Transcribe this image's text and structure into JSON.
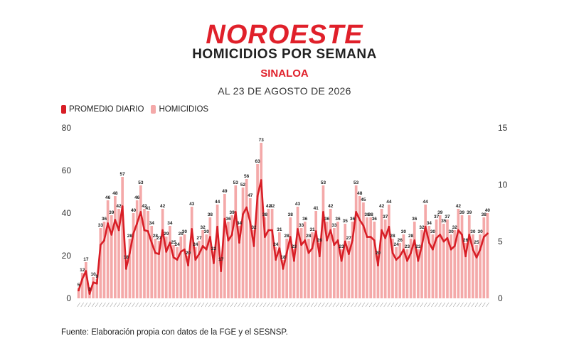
{
  "header": {
    "brand": "NOROESTE",
    "title": "HOMICIDIOS POR SEMANA",
    "subtitle": "SINALOA",
    "date": "AL 23 DE AGOSTO DE 2026"
  },
  "legend": {
    "line_label": "PROMEDIO DIARIO",
    "bar_label": "HOMICIDIOS"
  },
  "footnote": "Fuente: Elaboración propia con datos de la FGE y el SESNSP.",
  "colors": {
    "brand": "#e0202a",
    "bars": "#f4a9a9",
    "line": "#d81e26",
    "subtitle": "#e0202a"
  },
  "chart_data": {
    "type": "bar",
    "title": "HOMICIDIOS POR SEMANA",
    "subtitle": "SINALOA",
    "left_axis": {
      "ylim": [
        0,
        80
      ],
      "ticks": [
        0,
        20,
        40,
        60,
        80
      ]
    },
    "right_axis": {
      "ylim": [
        0,
        15
      ],
      "ticks": [
        0,
        5,
        10,
        15
      ]
    },
    "grid": false,
    "legend_position": "top-left",
    "series": [
      {
        "name": "HOMICIDIOS",
        "kind": "bar",
        "axis": "left",
        "values": [
          5,
          12,
          17,
          3,
          10,
          9,
          33,
          36,
          46,
          39,
          48,
          42,
          57,
          18,
          28,
          40,
          46,
          53,
          42,
          41,
          34,
          28,
          27,
          42,
          29,
          34,
          25,
          24,
          29,
          30,
          20,
          43,
          24,
          27,
          32,
          30,
          38,
          22,
          44,
          17,
          49,
          36,
          39,
          53,
          34,
          52,
          56,
          47,
          32,
          63,
          73,
          38,
          42,
          42,
          24,
          31,
          18,
          28,
          38,
          23,
          43,
          33,
          36,
          28,
          31,
          41,
          26,
          53,
          36,
          42,
          33,
          36,
          23,
          35,
          27,
          36,
          53,
          48,
          45,
          38,
          38,
          36,
          20,
          42,
          37,
          44,
          28,
          24,
          26,
          30,
          23,
          28,
          36,
          23,
          32,
          44,
          34,
          30,
          37,
          39,
          35,
          37,
          30,
          32,
          42,
          39,
          26,
          39,
          30,
          25,
          30,
          38,
          40
        ]
      },
      {
        "name": "PROMEDIO DIARIO",
        "kind": "line",
        "axis": "right",
        "values": [
          0.7,
          1.7,
          2.4,
          0.4,
          1.4,
          1.3,
          4.7,
          5.1,
          6.6,
          5.6,
          6.9,
          6.0,
          8.1,
          2.6,
          4.0,
          5.7,
          6.6,
          7.6,
          6.0,
          5.9,
          4.9,
          4.0,
          3.9,
          6.0,
          4.1,
          4.9,
          3.6,
          3.4,
          4.1,
          4.3,
          2.9,
          6.1,
          3.4,
          3.9,
          4.6,
          4.3,
          5.4,
          3.1,
          6.3,
          2.4,
          7.0,
          5.1,
          5.6,
          7.6,
          4.9,
          7.4,
          8.0,
          6.7,
          4.6,
          9.0,
          10.4,
          5.4,
          6.0,
          6.0,
          3.4,
          4.4,
          2.6,
          4.0,
          5.4,
          3.3,
          6.1,
          4.7,
          5.1,
          4.0,
          4.4,
          5.9,
          3.7,
          7.6,
          5.1,
          6.0,
          4.7,
          5.1,
          3.3,
          5.0,
          3.9,
          5.1,
          7.6,
          6.9,
          6.4,
          5.4,
          5.4,
          5.1,
          2.9,
          6.0,
          5.3,
          6.3,
          4.0,
          3.4,
          3.7,
          4.3,
          3.3,
          4.0,
          5.1,
          3.3,
          4.6,
          6.3,
          4.9,
          4.3,
          5.3,
          5.6,
          5.0,
          5.3,
          4.3,
          4.6,
          6.0,
          5.6,
          3.7,
          5.6,
          4.3,
          3.6,
          4.3,
          5.4,
          5.7
        ]
      }
    ]
  }
}
